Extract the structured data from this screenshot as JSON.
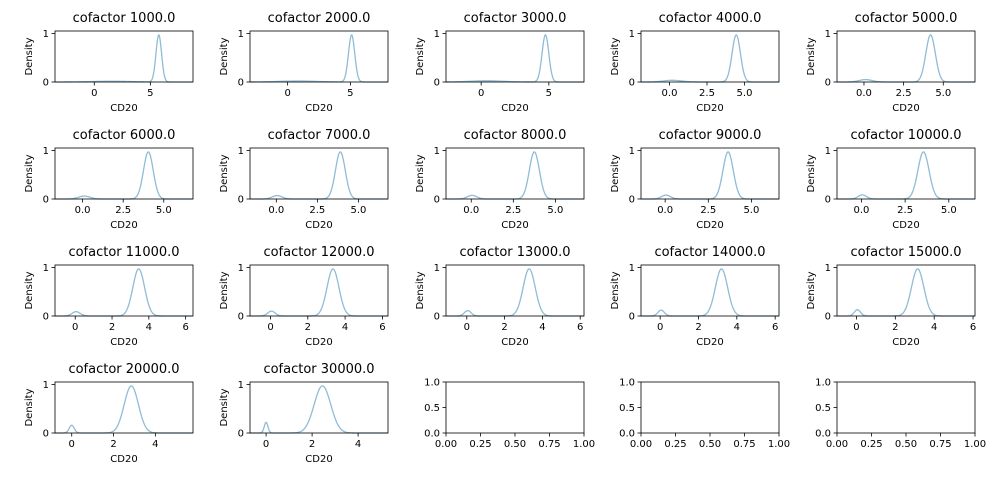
{
  "chart_data": [
    {
      "type": "line",
      "title": "cofactor 1000.0",
      "xlabel": "CD20",
      "ylabel": "Density",
      "xlim": [
        -3.5,
        8.8
      ],
      "ylim": [
        0,
        1.05
      ],
      "xticks": [
        0,
        5
      ],
      "yticks": [
        0,
        1
      ],
      "grid": false,
      "series": [
        {
          "color": "#8fbcd6",
          "peaks": [
            {
              "center": 5.75,
              "sigma": 0.25,
              "height": 0.97
            },
            {
              "center": 1.5,
              "sigma": 1.7,
              "height": 0.015
            }
          ]
        }
      ]
    },
    {
      "type": "line",
      "title": "cofactor 2000.0",
      "xlabel": "CD20",
      "ylabel": "Density",
      "xlim": [
        -3.0,
        8.0
      ],
      "ylim": [
        0,
        1.05
      ],
      "xticks": [
        0,
        5
      ],
      "yticks": [
        0,
        1
      ],
      "grid": false,
      "series": [
        {
          "color": "#8fbcd6",
          "peaks": [
            {
              "center": 5.1,
              "sigma": 0.25,
              "height": 0.97
            },
            {
              "center": 0.8,
              "sigma": 1.5,
              "height": 0.02
            }
          ]
        }
      ]
    },
    {
      "type": "line",
      "title": "cofactor 3000.0",
      "xlabel": "CD20",
      "ylabel": "Density",
      "xlim": [
        -2.6,
        7.6
      ],
      "ylim": [
        0,
        1.05
      ],
      "xticks": [
        0,
        5
      ],
      "yticks": [
        0,
        1
      ],
      "grid": false,
      "series": [
        {
          "color": "#8fbcd6",
          "peaks": [
            {
              "center": 4.75,
              "sigma": 0.25,
              "height": 0.97
            },
            {
              "center": 0.4,
              "sigma": 1.2,
              "height": 0.025
            }
          ]
        }
      ]
    },
    {
      "type": "line",
      "title": "cofactor 4000.0",
      "xlabel": "CD20",
      "ylabel": "Density",
      "xlim": [
        -1.9,
        7.3
      ],
      "ylim": [
        0,
        1.05
      ],
      "xticks": [
        0.0,
        2.5,
        5.0
      ],
      "yticks": [
        0,
        1
      ],
      "grid": false,
      "series": [
        {
          "color": "#8fbcd6",
          "peaks": [
            {
              "center": 4.45,
              "sigma": 0.28,
              "height": 0.97
            },
            {
              "center": 0.2,
              "sigma": 0.6,
              "height": 0.035
            }
          ]
        }
      ]
    },
    {
      "type": "line",
      "title": "cofactor 5000.0",
      "xlabel": "CD20",
      "ylabel": "Density",
      "xlim": [
        -1.7,
        7.0
      ],
      "ylim": [
        0,
        1.05
      ],
      "xticks": [
        0.0,
        2.5,
        5.0
      ],
      "yticks": [
        0,
        1
      ],
      "grid": false,
      "series": [
        {
          "color": "#8fbcd6",
          "peaks": [
            {
              "center": 4.2,
              "sigma": 0.3,
              "height": 0.97
            },
            {
              "center": 0.1,
              "sigma": 0.4,
              "height": 0.05
            }
          ]
        }
      ]
    },
    {
      "type": "line",
      "title": "cofactor 6000.0",
      "xlabel": "CD20",
      "ylabel": "Density",
      "xlim": [
        -1.7,
        6.8
      ],
      "ylim": [
        0,
        1.05
      ],
      "xticks": [
        0.0,
        2.5,
        5.0
      ],
      "yticks": [
        0,
        1
      ],
      "grid": false,
      "series": [
        {
          "color": "#8fbcd6",
          "peaks": [
            {
              "center": 4.05,
              "sigma": 0.3,
              "height": 0.97
            },
            {
              "center": 0.1,
              "sigma": 0.35,
              "height": 0.06
            }
          ]
        }
      ]
    },
    {
      "type": "line",
      "title": "cofactor 7000.0",
      "xlabel": "CD20",
      "ylabel": "Density",
      "xlim": [
        -1.6,
        6.8
      ],
      "ylim": [
        0,
        1.05
      ],
      "xticks": [
        0.0,
        2.5,
        5.0
      ],
      "yticks": [
        0,
        1
      ],
      "grid": false,
      "series": [
        {
          "color": "#8fbcd6",
          "peaks": [
            {
              "center": 3.9,
              "sigma": 0.3,
              "height": 0.97
            },
            {
              "center": 0.05,
              "sigma": 0.3,
              "height": 0.07
            }
          ]
        }
      ]
    },
    {
      "type": "line",
      "title": "cofactor 8000.0",
      "xlabel": "CD20",
      "ylabel": "Density",
      "xlim": [
        -1.5,
        6.7
      ],
      "ylim": [
        0,
        1.05
      ],
      "xticks": [
        0.0,
        2.5,
        5.0
      ],
      "yticks": [
        0,
        1
      ],
      "grid": false,
      "series": [
        {
          "color": "#8fbcd6",
          "peaks": [
            {
              "center": 3.75,
              "sigma": 0.3,
              "height": 0.97
            },
            {
              "center": 0.05,
              "sigma": 0.28,
              "height": 0.075
            }
          ]
        }
      ]
    },
    {
      "type": "line",
      "title": "cofactor 9000.0",
      "xlabel": "CD20",
      "ylabel": "Density",
      "xlim": [
        -1.4,
        6.6
      ],
      "ylim": [
        0,
        1.05
      ],
      "xticks": [
        0.0,
        2.5,
        5.0
      ],
      "yticks": [
        0,
        1
      ],
      "grid": false,
      "series": [
        {
          "color": "#8fbcd6",
          "peaks": [
            {
              "center": 3.65,
              "sigma": 0.3,
              "height": 0.97
            },
            {
              "center": 0.05,
              "sigma": 0.26,
              "height": 0.08
            }
          ]
        }
      ]
    },
    {
      "type": "line",
      "title": "cofactor 10000.0",
      "xlabel": "CD20",
      "ylabel": "Density",
      "xlim": [
        -1.4,
        6.5
      ],
      "ylim": [
        0,
        1.05
      ],
      "xticks": [
        0.0,
        2.5,
        5.0
      ],
      "yticks": [
        0,
        1
      ],
      "grid": false,
      "series": [
        {
          "color": "#8fbcd6",
          "peaks": [
            {
              "center": 3.55,
              "sigma": 0.32,
              "height": 0.97
            },
            {
              "center": 0.05,
              "sigma": 0.24,
              "height": 0.085
            }
          ]
        }
      ]
    },
    {
      "type": "line",
      "title": "cofactor 11000.0",
      "xlabel": "CD20",
      "ylabel": "Density",
      "xlim": [
        -1.1,
        6.4
      ],
      "ylim": [
        0,
        1.05
      ],
      "xticks": [
        0,
        2,
        4,
        6
      ],
      "yticks": [
        0,
        1
      ],
      "grid": false,
      "series": [
        {
          "color": "#8fbcd6",
          "peaks": [
            {
              "center": 3.45,
              "sigma": 0.32,
              "height": 0.97
            },
            {
              "center": 0.05,
              "sigma": 0.22,
              "height": 0.09
            }
          ]
        }
      ]
    },
    {
      "type": "line",
      "title": "cofactor 12000.0",
      "xlabel": "CD20",
      "ylabel": "Density",
      "xlim": [
        -1.1,
        6.3
      ],
      "ylim": [
        0,
        1.05
      ],
      "xticks": [
        0,
        2,
        4,
        6
      ],
      "yticks": [
        0,
        1
      ],
      "grid": false,
      "series": [
        {
          "color": "#8fbcd6",
          "peaks": [
            {
              "center": 3.35,
              "sigma": 0.32,
              "height": 0.97
            },
            {
              "center": 0.05,
              "sigma": 0.2,
              "height": 0.1
            }
          ]
        }
      ]
    },
    {
      "type": "line",
      "title": "cofactor 13000.0",
      "xlabel": "CD20",
      "ylabel": "Density",
      "xlim": [
        -1.1,
        6.2
      ],
      "ylim": [
        0,
        1.05
      ],
      "xticks": [
        0,
        2,
        4,
        6
      ],
      "yticks": [
        0,
        1
      ],
      "grid": false,
      "series": [
        {
          "color": "#8fbcd6",
          "peaks": [
            {
              "center": 3.3,
              "sigma": 0.32,
              "height": 0.97
            },
            {
              "center": 0.05,
              "sigma": 0.18,
              "height": 0.11
            }
          ]
        }
      ]
    },
    {
      "type": "line",
      "title": "cofactor 14000.0",
      "xlabel": "CD20",
      "ylabel": "Density",
      "xlim": [
        -1.0,
        6.2
      ],
      "ylim": [
        0,
        1.05
      ],
      "xticks": [
        0,
        2,
        4,
        6
      ],
      "yticks": [
        0,
        1
      ],
      "grid": false,
      "series": [
        {
          "color": "#8fbcd6",
          "peaks": [
            {
              "center": 3.2,
              "sigma": 0.32,
              "height": 0.97
            },
            {
              "center": 0.05,
              "sigma": 0.17,
              "height": 0.12
            }
          ]
        }
      ]
    },
    {
      "type": "line",
      "title": "cofactor 15000.0",
      "xlabel": "CD20",
      "ylabel": "Density",
      "xlim": [
        -1.0,
        6.1
      ],
      "ylim": [
        0,
        1.05
      ],
      "xticks": [
        0,
        2,
        4,
        6
      ],
      "yticks": [
        0,
        1
      ],
      "grid": false,
      "series": [
        {
          "color": "#8fbcd6",
          "peaks": [
            {
              "center": 3.15,
              "sigma": 0.32,
              "height": 0.97
            },
            {
              "center": 0.05,
              "sigma": 0.16,
              "height": 0.13
            }
          ]
        }
      ]
    },
    {
      "type": "line",
      "title": "cofactor 20000.0",
      "xlabel": "CD20",
      "ylabel": "Density",
      "xlim": [
        -0.8,
        5.8
      ],
      "ylim": [
        0,
        1.05
      ],
      "xticks": [
        0,
        2,
        4
      ],
      "yticks": [
        0,
        1
      ],
      "grid": false,
      "series": [
        {
          "color": "#8fbcd6",
          "peaks": [
            {
              "center": 2.85,
              "sigma": 0.34,
              "height": 0.97
            },
            {
              "center": 0.0,
              "sigma": 0.12,
              "height": 0.16
            }
          ]
        }
      ]
    },
    {
      "type": "line",
      "title": "cofactor 30000.0",
      "xlabel": "CD20",
      "ylabel": "Density",
      "xlim": [
        -0.7,
        5.3
      ],
      "ylim": [
        0,
        1.05
      ],
      "xticks": [
        0,
        2,
        4
      ],
      "yticks": [
        0,
        1
      ],
      "grid": false,
      "series": [
        {
          "color": "#8fbcd6",
          "peaks": [
            {
              "center": 2.45,
              "sigma": 0.36,
              "height": 0.97
            },
            {
              "center": 0.0,
              "sigma": 0.08,
              "height": 0.22
            }
          ]
        }
      ]
    },
    {
      "type": "line",
      "title": "",
      "xlabel": "",
      "ylabel": "",
      "xlim": [
        0,
        1
      ],
      "ylim": [
        0,
        1
      ],
      "xticks": [
        0.0,
        0.25,
        0.5,
        0.75,
        1.0
      ],
      "yticks": [
        0.0,
        0.5,
        1.0
      ],
      "grid": false,
      "series": []
    },
    {
      "type": "line",
      "title": "",
      "xlabel": "",
      "ylabel": "",
      "xlim": [
        0,
        1
      ],
      "ylim": [
        0,
        1
      ],
      "xticks": [
        0.0,
        0.25,
        0.5,
        0.75,
        1.0
      ],
      "yticks": [
        0.0,
        0.5,
        1.0
      ],
      "grid": false,
      "series": []
    },
    {
      "type": "line",
      "title": "",
      "xlabel": "",
      "ylabel": "",
      "xlim": [
        0,
        1
      ],
      "ylim": [
        0,
        1
      ],
      "xticks": [
        0.0,
        0.25,
        0.5,
        0.75,
        1.0
      ],
      "yticks": [
        0.0,
        0.5,
        1.0
      ],
      "grid": false,
      "series": []
    }
  ]
}
